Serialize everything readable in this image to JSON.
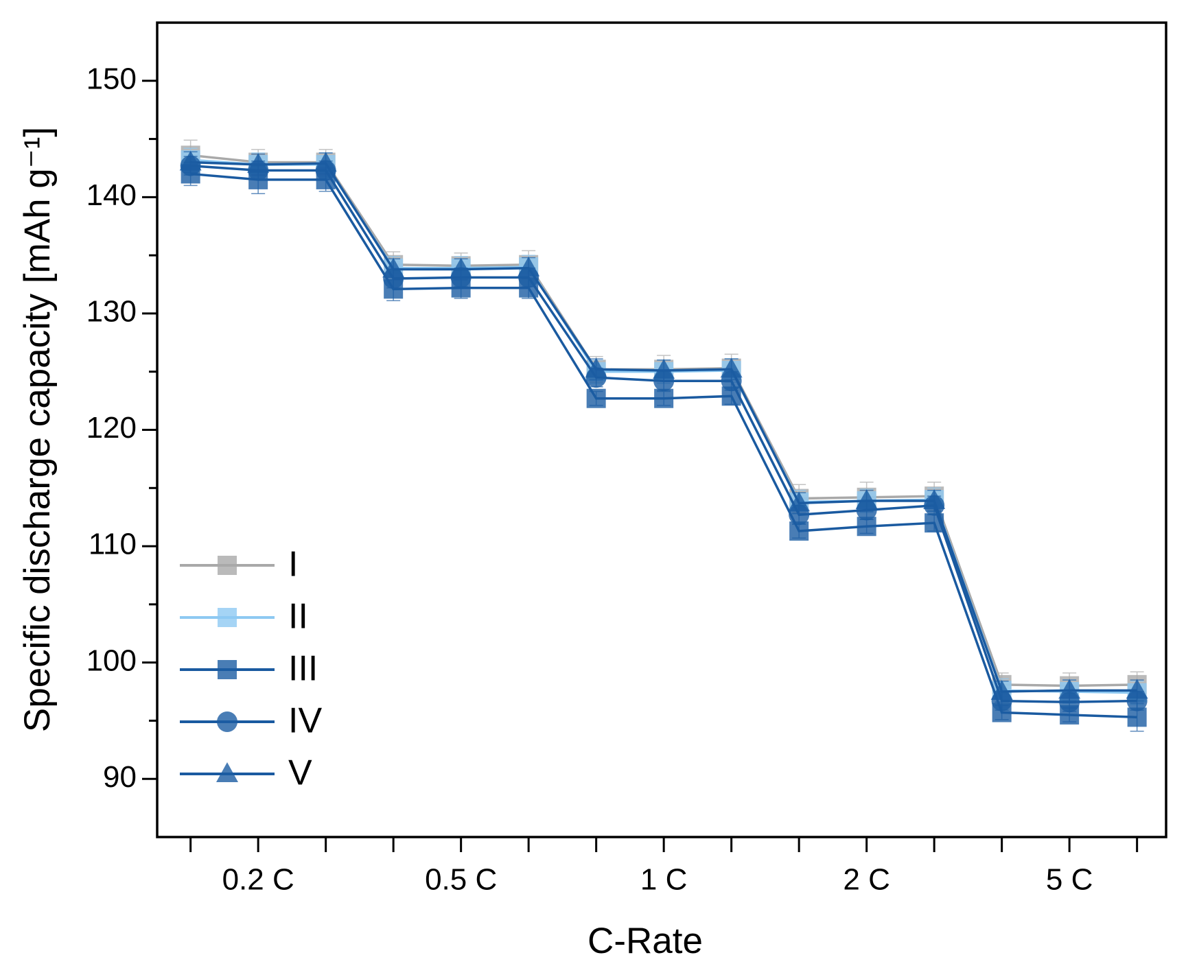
{
  "chart_data": {
    "type": "line",
    "x_label": "C-Rate",
    "y_label": "Specific discharge capacity [mAh g⁻¹]",
    "categories": [
      null,
      "0.2 C",
      null,
      null,
      "0.5 C",
      null,
      null,
      "1 C",
      null,
      null,
      "2 C",
      null,
      null,
      "5 C",
      null
    ],
    "ylim": [
      85,
      155
    ],
    "yticks": [
      90,
      100,
      110,
      120,
      130,
      140,
      150
    ],
    "yminorticks": [
      95,
      105,
      115,
      125,
      135,
      145
    ],
    "legend": "lower left",
    "series": [
      {
        "name": "I",
        "color": "#a9a9a9",
        "marker": "square",
        "values": [
          143.6,
          143.0,
          143.0,
          134.2,
          134.1,
          134.2,
          125.2,
          125.2,
          125.3,
          114.1,
          114.2,
          114.3,
          98.1,
          98.0,
          98.1
        ],
        "errors": [
          1.3,
          1.1,
          1.1,
          1.1,
          1.1,
          1.2,
          1.1,
          1.2,
          1.2,
          1.2,
          1.3,
          1.2,
          1.0,
          1.1,
          1.1
        ]
      },
      {
        "name": "II",
        "color": "#8ec9f2",
        "marker": "square",
        "values": [
          143.2,
          142.8,
          142.8,
          133.9,
          133.9,
          134.0,
          125.0,
          125.0,
          125.1,
          113.8,
          113.9,
          114.0,
          97.6,
          97.5,
          97.4
        ],
        "errors": [
          1.0,
          1.0,
          1.0,
          1.0,
          1.0,
          1.0,
          1.0,
          1.0,
          1.0,
          1.0,
          1.0,
          1.0,
          1.0,
          1.0,
          1.0
        ]
      },
      {
        "name": "III",
        "color": "#1c5ca3",
        "marker": "square",
        "values": [
          142.0,
          141.5,
          141.5,
          132.1,
          132.2,
          132.2,
          122.7,
          122.7,
          122.9,
          111.3,
          111.7,
          112.0,
          95.7,
          95.5,
          95.3
        ],
        "errors": [
          1.0,
          1.2,
          1.0,
          1.0,
          0.9,
          0.9,
          0.6,
          0.6,
          0.7,
          0.6,
          0.6,
          0.7,
          0.6,
          0.6,
          1.2
        ]
      },
      {
        "name": "IV",
        "color": "#1c5ca3",
        "marker": "circle",
        "values": [
          142.7,
          142.3,
          142.3,
          133.0,
          133.1,
          133.1,
          124.5,
          124.2,
          124.2,
          112.7,
          113.1,
          113.5,
          96.7,
          96.6,
          96.7
        ],
        "errors": [
          0.8,
          0.8,
          0.8,
          0.8,
          0.8,
          0.8,
          0.8,
          0.8,
          0.8,
          0.8,
          0.8,
          0.8,
          0.8,
          0.8,
          0.8
        ]
      },
      {
        "name": "V",
        "color": "#1c5ca3",
        "marker": "triangle",
        "values": [
          143.0,
          142.8,
          142.9,
          133.8,
          133.8,
          133.9,
          125.2,
          125.1,
          125.2,
          113.7,
          113.9,
          113.9,
          97.5,
          97.6,
          97.6
        ],
        "errors": [
          0.9,
          0.9,
          0.9,
          0.9,
          0.9,
          0.9,
          0.9,
          0.9,
          0.9,
          0.9,
          0.9,
          0.9,
          0.9,
          0.9,
          0.9
        ]
      }
    ]
  }
}
